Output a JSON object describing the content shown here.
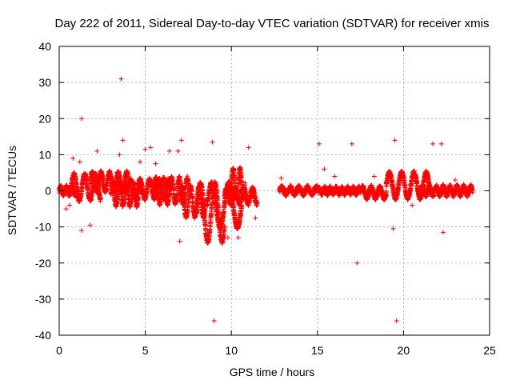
{
  "chart_data": {
    "type": "scatter",
    "title": "Day 222 of 2011, Sidereal Day-to-day VTEC variation (SDTVAR) for receiver xmis",
    "xlabel": "GPS time / hours",
    "ylabel": "SDTVAR / TECUs",
    "xlim": [
      0,
      25
    ],
    "ylim": [
      -40,
      40
    ],
    "xticks": [
      "0",
      "5",
      "10",
      "15",
      "20",
      "25"
    ],
    "yticks": [
      "40",
      "30",
      "20",
      "10",
      "0",
      "-10",
      "-20",
      "-30",
      "-40"
    ],
    "grid": true,
    "marker": "+",
    "color": "#ff0000",
    "segments": [
      {
        "x0": 0.0,
        "x1": 1.0,
        "amp": 1.0,
        "freq": 3.0,
        "bias": 0.0
      },
      {
        "x0": 0.7,
        "x1": 2.4,
        "amp": 3.5,
        "freq": 1.6,
        "bias": 1.0
      },
      {
        "x0": 1.8,
        "x1": 4.0,
        "amp": 2.5,
        "freq": 2.0,
        "bias": 2.5
      },
      {
        "x0": 3.0,
        "x1": 4.8,
        "amp": 3.0,
        "freq": 2.5,
        "bias": -1.0
      },
      {
        "x0": 4.0,
        "x1": 6.5,
        "amp": 2.5,
        "freq": 1.8,
        "bias": 0.5
      },
      {
        "x0": 5.5,
        "x1": 7.5,
        "amp": 3.5,
        "freq": 2.2,
        "bias": 0.0
      },
      {
        "x0": 7.0,
        "x1": 8.5,
        "amp": 4.0,
        "freq": 2.0,
        "bias": -3.0
      },
      {
        "x0": 8.0,
        "x1": 9.6,
        "amp": 8.0,
        "freq": 1.2,
        "bias": -6.0
      },
      {
        "x0": 8.6,
        "x1": 10.6,
        "amp": 6.0,
        "freq": 1.0,
        "bias": -4.0
      },
      {
        "x0": 9.6,
        "x1": 11.5,
        "amp": 2.0,
        "freq": 2.0,
        "bias": -1.5
      },
      {
        "x0": 10.0,
        "x1": 10.8,
        "amp": 4.0,
        "freq": 2.5,
        "bias": 2.0
      },
      {
        "x0": 12.8,
        "x1": 15.0,
        "amp": 0.9,
        "freq": 2.0,
        "bias": 0.0
      },
      {
        "x0": 15.0,
        "x1": 17.5,
        "amp": 0.8,
        "freq": 3.0,
        "bias": 0.0
      },
      {
        "x0": 17.5,
        "x1": 19.0,
        "amp": 1.5,
        "freq": 2.0,
        "bias": -0.5
      },
      {
        "x0": 19.0,
        "x1": 21.5,
        "amp": 3.5,
        "freq": 1.4,
        "bias": 1.5
      },
      {
        "x0": 21.0,
        "x1": 24.0,
        "amp": 1.2,
        "freq": 2.5,
        "bias": 0.0
      }
    ],
    "outliers": [
      [
        3.6,
        31
      ],
      [
        1.3,
        20
      ],
      [
        3.7,
        14
      ],
      [
        7.1,
        14
      ],
      [
        8.9,
        13.5
      ],
      [
        15.1,
        13
      ],
      [
        17.0,
        13
      ],
      [
        19.5,
        14
      ],
      [
        21.7,
        13
      ],
      [
        22.2,
        13
      ],
      [
        11.0,
        12
      ],
      [
        5.0,
        11.5
      ],
      [
        5.3,
        12
      ],
      [
        0.8,
        9
      ],
      [
        1.2,
        8
      ],
      [
        9.0,
        -36
      ],
      [
        17.3,
        -20
      ],
      [
        19.6,
        -36
      ],
      [
        7.0,
        -14
      ],
      [
        1.3,
        -11
      ],
      [
        1.8,
        -9.5
      ],
      [
        19.4,
        -10.5
      ],
      [
        22.3,
        -11.5
      ],
      [
        9.8,
        -13
      ],
      [
        6.4,
        11
      ],
      [
        6.9,
        11
      ],
      [
        2.2,
        11
      ],
      [
        3.5,
        10
      ],
      [
        4.7,
        8
      ],
      [
        5.6,
        7.5
      ],
      [
        10.4,
        -13
      ],
      [
        11.4,
        -7.5
      ],
      [
        15.4,
        6
      ],
      [
        16.0,
        4
      ],
      [
        18.3,
        4
      ],
      [
        20.5,
        -4
      ],
      [
        23.0,
        3
      ],
      [
        12.9,
        3.5
      ],
      [
        0.4,
        -5
      ],
      [
        0.6,
        -4
      ]
    ]
  }
}
